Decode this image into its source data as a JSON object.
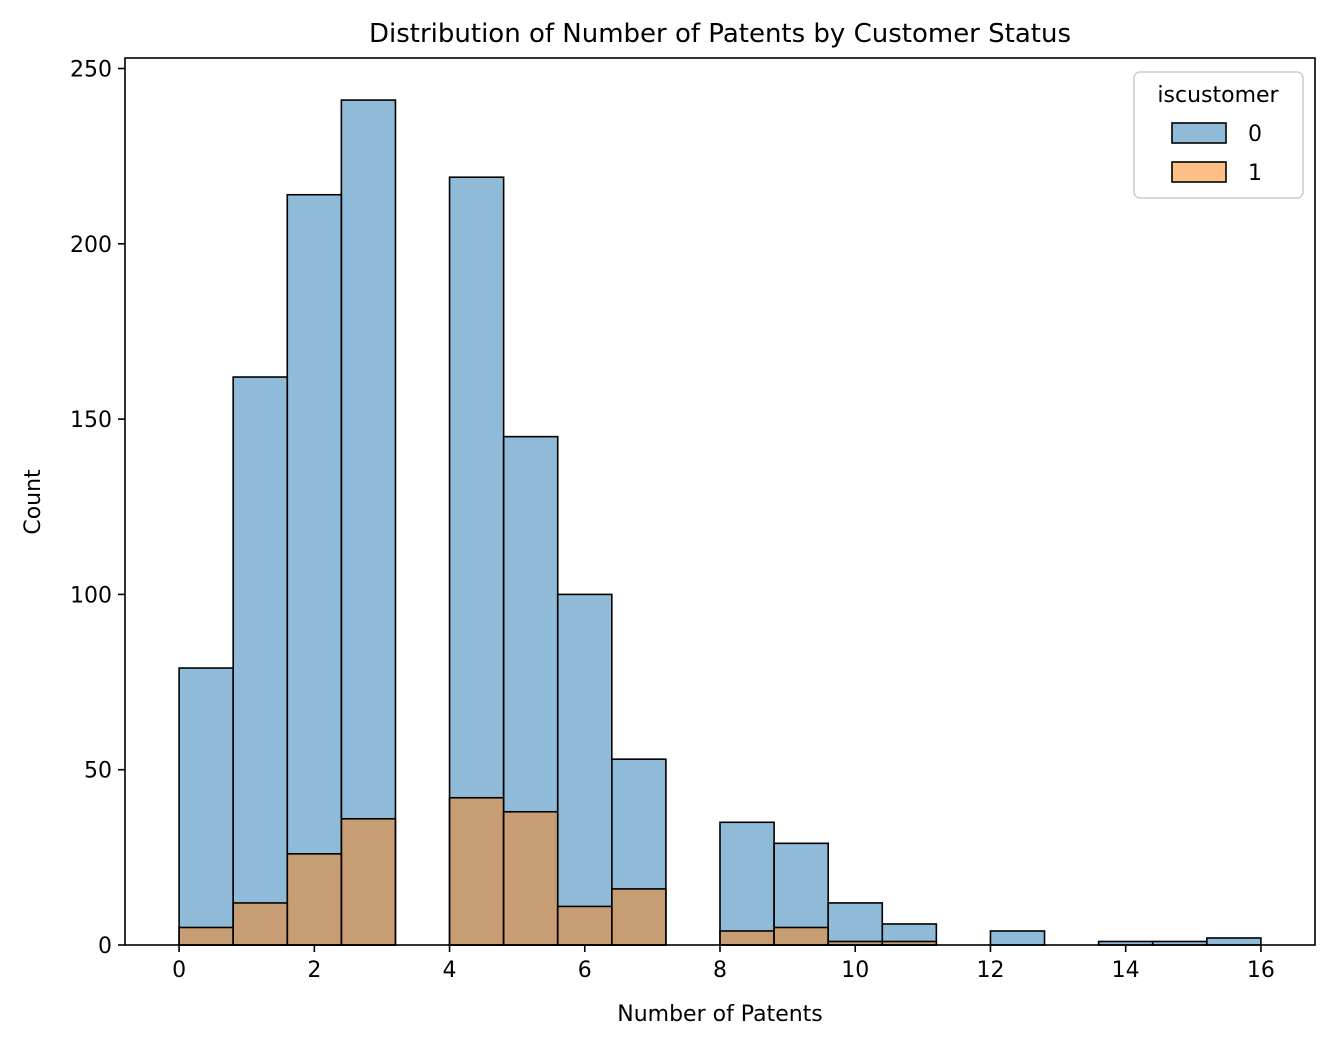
{
  "chart_data": {
    "type": "bar",
    "title": "Distribution of Number of Patents by Customer Status",
    "xlabel": "Number of Patents",
    "ylabel": "Count",
    "xlim": [
      -0.8,
      16.8
    ],
    "ylim": [
      0,
      253
    ],
    "xticks": [
      0,
      2,
      4,
      6,
      8,
      10,
      12,
      14,
      16
    ],
    "yticks": [
      0,
      50,
      100,
      150,
      200,
      250
    ],
    "bin_edges": [
      0,
      0.8,
      1.6,
      2.4,
      3.2,
      4.0,
      4.8,
      5.6,
      6.4,
      7.2,
      8.0,
      8.8,
      9.6,
      10.4,
      11.2,
      12.0,
      12.8,
      13.6,
      14.4,
      15.2,
      16.0
    ],
    "legend": {
      "title": "iscustomer",
      "position": "top-right"
    },
    "series": [
      {
        "name": "0",
        "color": "#1f77b4",
        "values": [
          79,
          162,
          214,
          241,
          0,
          219,
          145,
          100,
          53,
          0,
          35,
          29,
          12,
          6,
          0,
          4,
          0,
          1,
          1,
          2
        ]
      },
      {
        "name": "1",
        "color": "#ff7f0e",
        "values": [
          5,
          12,
          26,
          36,
          0,
          42,
          38,
          11,
          16,
          0,
          4,
          5,
          1,
          1,
          0,
          0,
          0,
          0,
          0,
          0
        ]
      }
    ]
  }
}
